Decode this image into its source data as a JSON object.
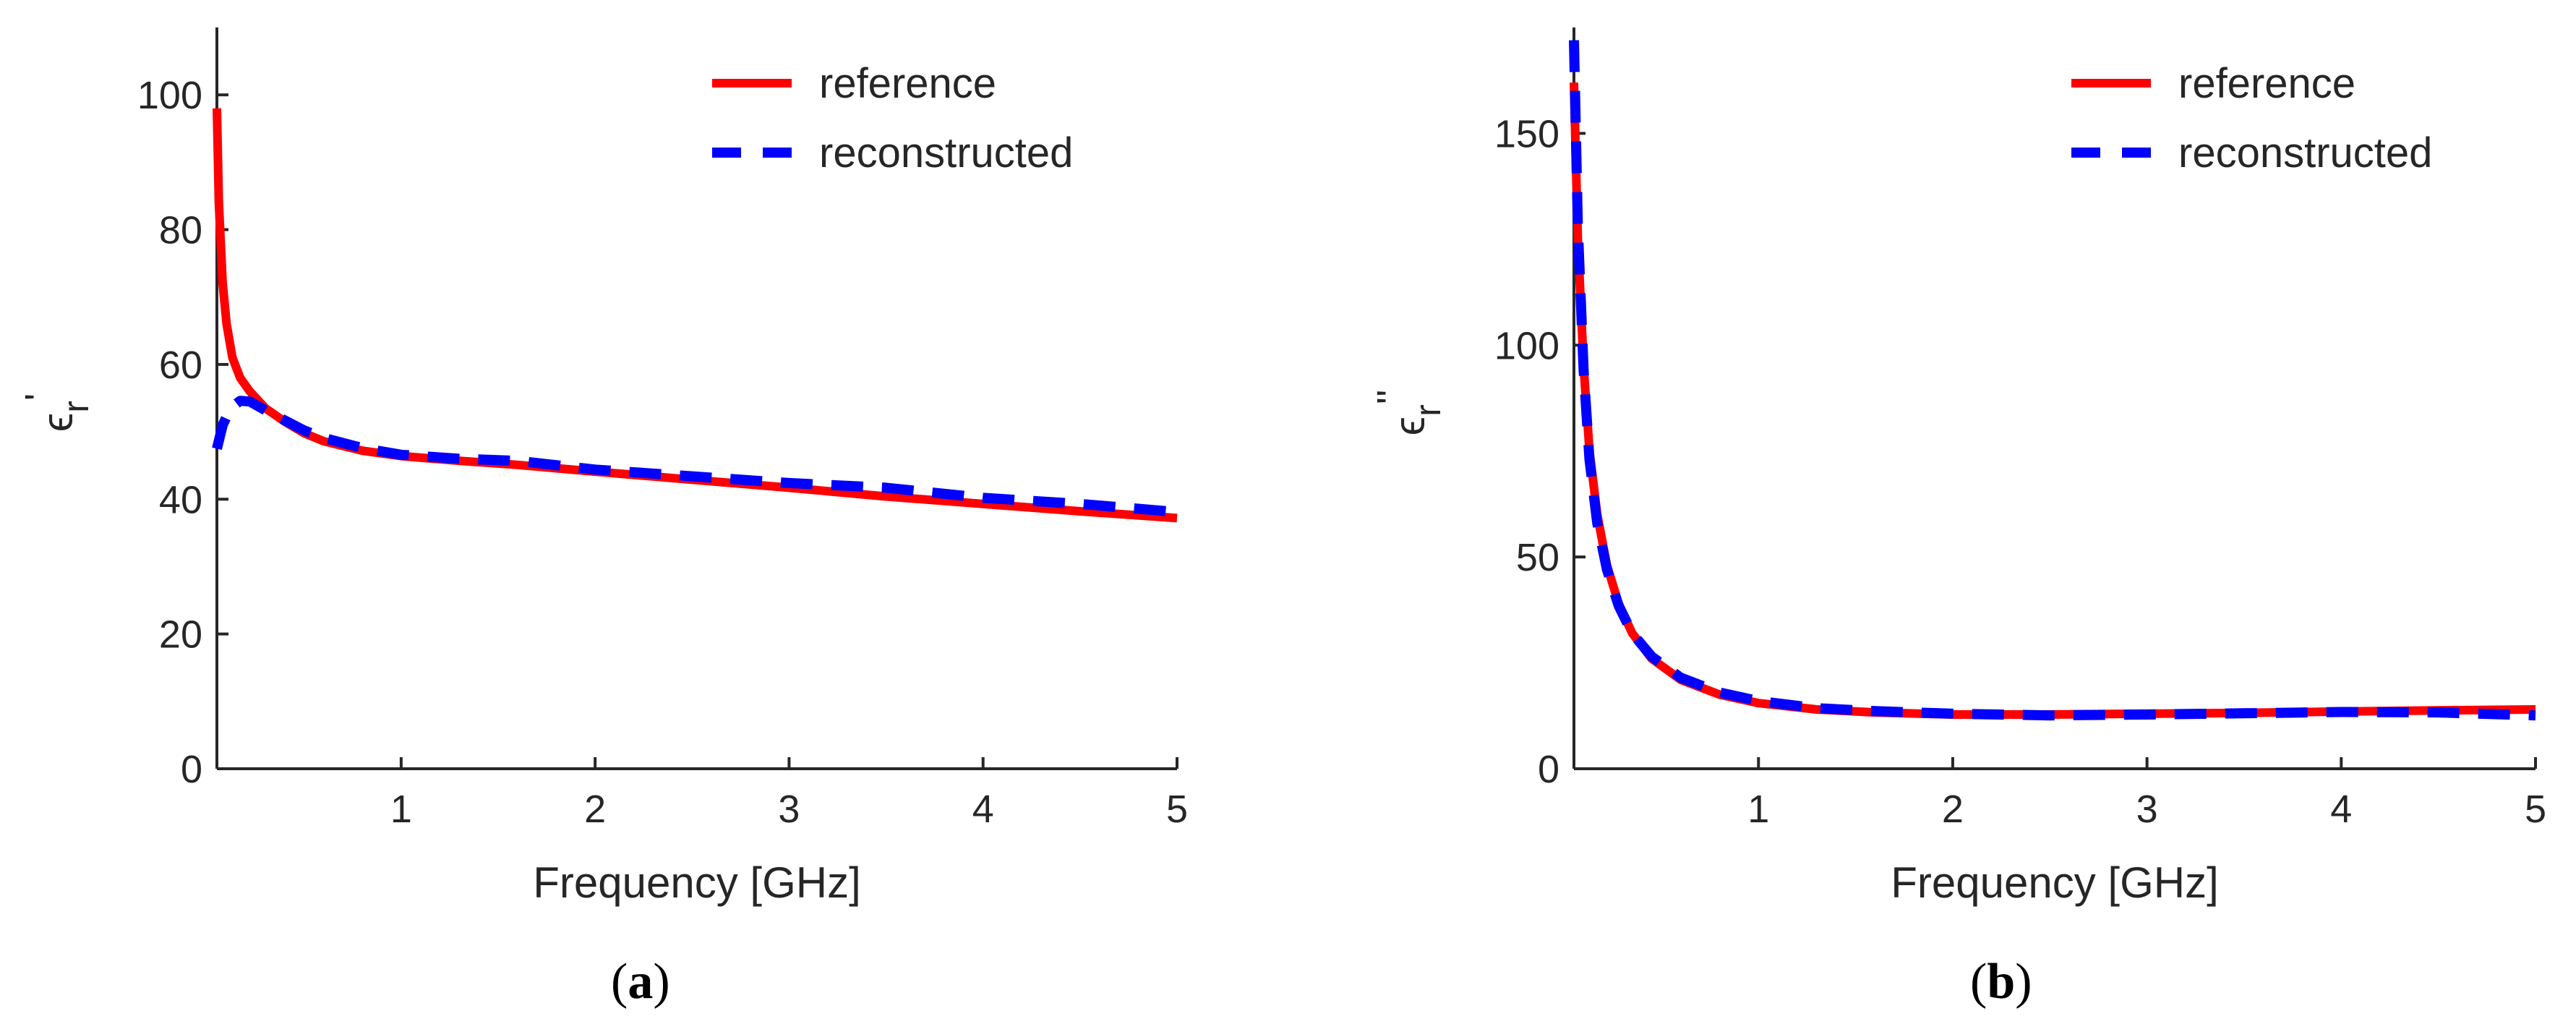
{
  "chart_data": [
    {
      "id": "a",
      "type": "line",
      "caption": "a",
      "xlabel": "Frequency [GHz]",
      "ylabel": "ε_r'",
      "ylabel_parts": {
        "symbol": "ϵ",
        "subscript": "r",
        "prime": "'"
      },
      "xlim": [
        0.05,
        5
      ],
      "ylim": [
        0,
        110
      ],
      "xticks": [
        1,
        2,
        3,
        4,
        5
      ],
      "yticks": [
        0,
        20,
        40,
        60,
        80,
        100
      ],
      "legend": {
        "position": "top-right",
        "entries": [
          "reference",
          "reconstructed"
        ]
      },
      "series": [
        {
          "name": "reference",
          "color": "#ff0000",
          "style": "solid",
          "x": [
            0.05,
            0.06,
            0.08,
            0.1,
            0.13,
            0.17,
            0.22,
            0.3,
            0.4,
            0.5,
            0.6,
            0.8,
            1.0,
            1.3,
            1.6,
            2.0,
            2.5,
            3.0,
            3.5,
            4.0,
            4.5,
            5.0
          ],
          "y": [
            98,
            84,
            72,
            66,
            61,
            58,
            56,
            53.5,
            51.5,
            49.8,
            48.6,
            47.2,
            46.4,
            45.7,
            45.1,
            44.1,
            42.9,
            41.7,
            40.4,
            39.3,
            38.2,
            37.2
          ]
        },
        {
          "name": "reconstructed",
          "color": "#0000ff",
          "style": "dashed",
          "x": [
            0.05,
            0.08,
            0.12,
            0.17,
            0.22,
            0.3,
            0.4,
            0.5,
            0.6,
            0.8,
            1.0,
            1.3,
            1.6,
            2.0,
            2.5,
            3.0,
            3.5,
            4.0,
            4.5,
            5.0
          ],
          "y": [
            47.5,
            51,
            53.5,
            54.6,
            54.5,
            53.2,
            51.7,
            50.2,
            49.1,
            47.6,
            46.6,
            46.0,
            45.7,
            44.4,
            43.4,
            42.4,
            41.7,
            40.2,
            39.3,
            38.1
          ]
        }
      ]
    },
    {
      "id": "b",
      "type": "line",
      "caption": "b",
      "xlabel": "Frequency [GHz]",
      "ylabel": "ε_r''",
      "ylabel_parts": {
        "symbol": "ϵ",
        "subscript": "r",
        "prime": "''"
      },
      "xlim": [
        0.05,
        5
      ],
      "ylim": [
        0,
        175
      ],
      "xticks": [
        1,
        2,
        3,
        4,
        5
      ],
      "yticks": [
        0,
        50,
        100,
        150
      ],
      "legend": {
        "position": "top-right",
        "entries": [
          "reference",
          "reconstructed"
        ]
      },
      "series": [
        {
          "name": "reference",
          "color": "#ff0000",
          "style": "solid",
          "x": [
            0.05,
            0.07,
            0.1,
            0.13,
            0.17,
            0.22,
            0.28,
            0.35,
            0.45,
            0.6,
            0.8,
            1.0,
            1.3,
            1.6,
            2.0,
            2.5,
            3.0,
            3.5,
            4.0,
            4.5,
            5.0
          ],
          "y": [
            162,
            125,
            95,
            75,
            60,
            48,
            39,
            32,
            26,
            21,
            17.5,
            15.5,
            14,
            13.3,
            12.8,
            12.8,
            13,
            13.2,
            13.5,
            13.8,
            14
          ]
        },
        {
          "name": "reconstructed",
          "color": "#0000ff",
          "style": "dashed",
          "x": [
            0.05,
            0.07,
            0.1,
            0.13,
            0.17,
            0.22,
            0.28,
            0.35,
            0.45,
            0.6,
            0.8,
            1.0,
            1.3,
            1.6,
            2.0,
            2.5,
            3.0,
            3.5,
            4.0,
            4.5,
            5.0
          ],
          "y": [
            172,
            128,
            94,
            73,
            58,
            47,
            38.5,
            32,
            26.5,
            21.5,
            18,
            16,
            14.3,
            13.6,
            13,
            12.6,
            12.8,
            13.1,
            13.4,
            13.3,
            12.6
          ]
        }
      ]
    }
  ]
}
